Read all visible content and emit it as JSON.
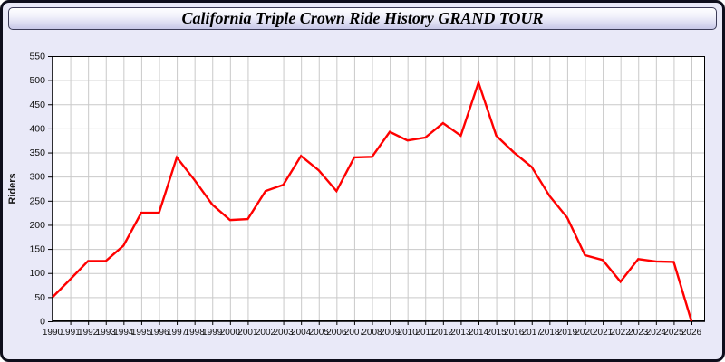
{
  "title": "California Triple Crown Ride History GRAND TOUR",
  "colors": {
    "panel_bg": "#e9e9f8",
    "panel_border": "#0e0e1c",
    "titlebar_border": "#3c3c58",
    "plot_bg": "#ffffff",
    "grid": "#c9c9c9",
    "axis": "#000000",
    "tick_label": "#111111",
    "line": "#ff0000"
  },
  "chart_data": {
    "type": "line",
    "title": "California Triple Crown Ride History GRAND TOUR",
    "xlabel": "",
    "ylabel": "Riders",
    "x": [
      1990,
      1991,
      1992,
      1993,
      1994,
      1995,
      1996,
      1997,
      1998,
      1999,
      2000,
      2001,
      2002,
      2003,
      2004,
      2005,
      2006,
      2007,
      2008,
      2009,
      2010,
      2011,
      2012,
      2013,
      2014,
      2015,
      2016,
      2017,
      2018,
      2019,
      2020,
      2021,
      2022,
      2023,
      2024,
      2025,
      2026
    ],
    "series": [
      {
        "name": "Riders",
        "color": "#ff0000",
        "values": [
          50,
          87,
          125,
          125,
          157,
          225,
          225,
          340,
          293,
          242,
          210,
          212,
          270,
          283,
          343,
          313,
          270,
          340,
          341,
          393,
          375,
          381,
          411,
          385,
          495,
          385,
          350,
          320,
          260,
          215,
          137,
          127,
          82,
          129,
          124,
          123,
          0
        ]
      }
    ],
    "ylim": [
      0,
      550
    ],
    "ytick_step": 50,
    "grid": true,
    "legend_position": "none"
  }
}
